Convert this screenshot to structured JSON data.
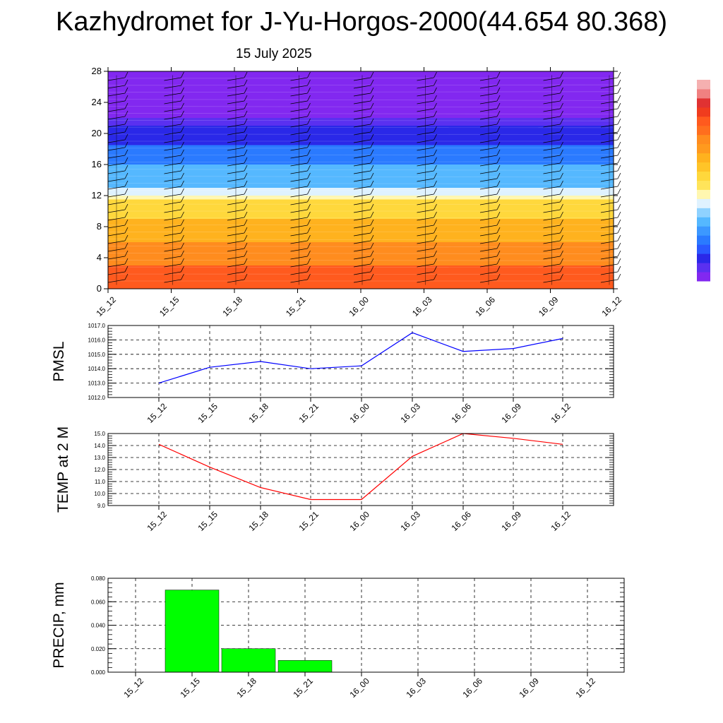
{
  "title": "Kazhydromet for J-Yu-Horgos-2000(44.654 80.368)",
  "subtitle": "15 July 2025",
  "chart_data": [
    {
      "type": "heatmap",
      "name": "cross-section",
      "x_categories": [
        "15_12",
        "15_15",
        "15_18",
        "15_21",
        "16_00",
        "16_03",
        "16_06",
        "16_09",
        "16_12"
      ],
      "y_ticks": [
        "0",
        "4",
        "8",
        "12",
        "16",
        "20",
        "24",
        "28"
      ],
      "ylim": [
        0,
        28
      ],
      "color_bands_bottom_to_top": [
        {
          "from": 0,
          "to": 3,
          "color": "#ff5a1e"
        },
        {
          "from": 3,
          "to": 6,
          "color": "#ff8c1e"
        },
        {
          "from": 6,
          "to": 9,
          "color": "#ffb21e"
        },
        {
          "from": 9,
          "to": 11.5,
          "color": "#ffd83c"
        },
        {
          "from": 11.5,
          "to": 12,
          "color": "#fff7b0"
        },
        {
          "from": 12,
          "to": 13,
          "color": "#dff2ff"
        },
        {
          "from": 13,
          "to": 16,
          "color": "#55b8ff"
        },
        {
          "from": 16,
          "to": 18.5,
          "color": "#2a7aff"
        },
        {
          "from": 18.5,
          "to": 21,
          "color": "#2a28e8"
        },
        {
          "from": 21,
          "to": 22,
          "color": "#5a30f0"
        },
        {
          "from": 22,
          "to": 28,
          "color": "#8228f0"
        }
      ]
    },
    {
      "type": "line",
      "name": "pmsl",
      "ylabel": "PMSL",
      "categories": [
        "15_12",
        "15_15",
        "15_18",
        "15_21",
        "16_00",
        "16_03",
        "16_06",
        "16_09",
        "16_12"
      ],
      "values": [
        1013.0,
        1014.1,
        1014.5,
        1014.0,
        1014.2,
        1016.5,
        1015.2,
        1015.4,
        1016.1
      ],
      "ylim": [
        1012.0,
        1017.0
      ],
      "y_ticks": [
        "1012.0",
        "1013.0",
        "1014.0",
        "1015.0",
        "1016.0",
        "1017.0"
      ],
      "color": "#0000ff",
      "grid": true
    },
    {
      "type": "line",
      "name": "temp",
      "ylabel": "TEMP at 2 M",
      "categories": [
        "15_12",
        "15_15",
        "15_18",
        "15_21",
        "16_00",
        "16_03",
        "16_06",
        "16_09",
        "16_12"
      ],
      "values": [
        14.1,
        12.2,
        10.5,
        9.5,
        9.5,
        13.1,
        15.0,
        14.6,
        14.1
      ],
      "ylim": [
        9.0,
        15.0
      ],
      "y_ticks": [
        "9.0",
        "10.0",
        "11.0",
        "12.0",
        "13.0",
        "14.0",
        "15.0"
      ],
      "color": "#ff0000",
      "grid": true
    },
    {
      "type": "bar",
      "name": "precip",
      "ylabel": "PRECIP, mm",
      "categories": [
        "15_12",
        "15_15",
        "15_18",
        "15_21",
        "16_00",
        "16_03",
        "16_06",
        "16_09",
        "16_12"
      ],
      "values": [
        0,
        0.07,
        0.02,
        0.01,
        0,
        0,
        0,
        0,
        0
      ],
      "ylim": [
        0,
        0.08
      ],
      "y_ticks": [
        "0.000",
        "0.020",
        "0.040",
        "0.060",
        "0.080"
      ],
      "color": "#00ff00",
      "grid": true
    }
  ]
}
